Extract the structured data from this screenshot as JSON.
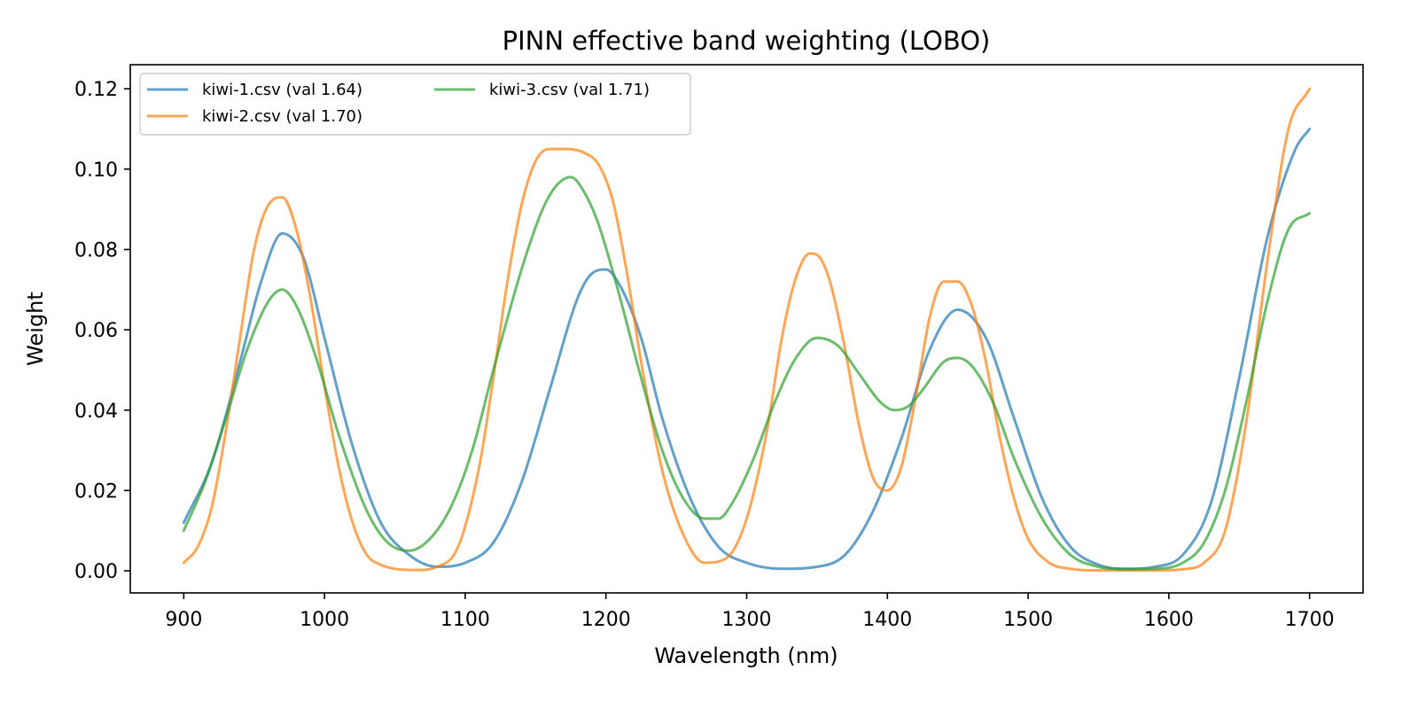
{
  "chart_data": {
    "type": "line",
    "title": "PINN effective band weighting (LOBO)",
    "xlabel": "Wavelength (nm)",
    "ylabel": "Weight",
    "xlim": [
      862,
      1738
    ],
    "ylim": [
      -0.0055,
      0.126
    ],
    "xticks": [
      900,
      1000,
      1100,
      1200,
      1300,
      1400,
      1500,
      1600,
      1700
    ],
    "yticks": [
      0.0,
      0.02,
      0.04,
      0.06,
      0.08,
      0.1,
      0.12
    ],
    "ytick_labels": [
      "0.00",
      "0.02",
      "0.04",
      "0.06",
      "0.08",
      "0.10",
      "0.12"
    ],
    "legend": {
      "position": "top-left",
      "columns": 2
    },
    "grid": false,
    "series": [
      {
        "name": "kiwi-1.csv (val 1.64)",
        "color": "#1f77b4",
        "x": [
          900,
          920,
          940,
          955,
          970,
          985,
          1000,
          1020,
          1040,
          1060,
          1080,
          1100,
          1120,
          1140,
          1160,
          1180,
          1190,
          1200,
          1210,
          1225,
          1240,
          1260,
          1280,
          1300,
          1325,
          1350,
          1370,
          1390,
          1410,
          1430,
          1450,
          1470,
          1490,
          1510,
          1530,
          1550,
          1570,
          1590,
          1610,
          1630,
          1650,
          1670,
          1690,
          1700
        ],
        "y": [
          0.012,
          0.027,
          0.052,
          0.072,
          0.084,
          0.078,
          0.058,
          0.031,
          0.012,
          0.004,
          0.001,
          0.002,
          0.007,
          0.022,
          0.045,
          0.068,
          0.074,
          0.075,
          0.071,
          0.058,
          0.038,
          0.018,
          0.006,
          0.002,
          0.0005,
          0.001,
          0.004,
          0.015,
          0.033,
          0.055,
          0.065,
          0.058,
          0.038,
          0.018,
          0.006,
          0.0015,
          0.0005,
          0.001,
          0.004,
          0.017,
          0.048,
          0.083,
          0.105,
          0.11
        ]
      },
      {
        "name": "kiwi-2.csv (val 1.70)",
        "color": "#ff7f0e",
        "x": [
          900,
          910,
          920,
          930,
          940,
          950,
          960,
          970,
          980,
          990,
          1000,
          1010,
          1020,
          1030,
          1040,
          1050,
          1065,
          1080,
          1095,
          1110,
          1120,
          1130,
          1140,
          1150,
          1160,
          1170,
          1185,
          1195,
          1205,
          1215,
          1225,
          1240,
          1255,
          1270,
          1285,
          1300,
          1315,
          1325,
          1335,
          1345,
          1352,
          1360,
          1370,
          1380,
          1390,
          1400,
          1410,
          1420,
          1430,
          1440,
          1450,
          1460,
          1470,
          1480,
          1490,
          1500,
          1515,
          1530,
          1550,
          1570,
          1590,
          1610,
          1625,
          1640,
          1655,
          1670,
          1685,
          1700
        ],
        "y": [
          0.002,
          0.006,
          0.016,
          0.035,
          0.058,
          0.08,
          0.091,
          0.093,
          0.085,
          0.068,
          0.046,
          0.026,
          0.012,
          0.004,
          0.0015,
          0.0005,
          0.0002,
          0.001,
          0.006,
          0.026,
          0.048,
          0.072,
          0.091,
          0.102,
          0.105,
          0.105,
          0.104,
          0.101,
          0.092,
          0.074,
          0.052,
          0.025,
          0.009,
          0.002,
          0.003,
          0.013,
          0.036,
          0.058,
          0.073,
          0.079,
          0.078,
          0.071,
          0.055,
          0.036,
          0.023,
          0.02,
          0.026,
          0.043,
          0.063,
          0.072,
          0.072,
          0.066,
          0.052,
          0.033,
          0.018,
          0.008,
          0.002,
          0.0005,
          0.0001,
          0.0001,
          0.0001,
          0.0004,
          0.002,
          0.01,
          0.037,
          0.077,
          0.11,
          0.12
        ]
      },
      {
        "name": "kiwi-3.csv (val 1.71)",
        "color": "#2ca02c",
        "x": [
          900,
          915,
          930,
          945,
          960,
          970,
          980,
          995,
          1010,
          1030,
          1045,
          1060,
          1075,
          1090,
          1105,
          1120,
          1140,
          1155,
          1165,
          1175,
          1185,
          1195,
          1210,
          1225,
          1240,
          1255,
          1270,
          1280,
          1290,
          1305,
          1320,
          1335,
          1350,
          1365,
          1380,
          1395,
          1405,
          1415,
          1425,
          1440,
          1450,
          1460,
          1475,
          1490,
          1510,
          1530,
          1550,
          1570,
          1590,
          1610,
          1625,
          1640,
          1655,
          1670,
          1685,
          1700
        ],
        "y": [
          0.01,
          0.022,
          0.038,
          0.055,
          0.067,
          0.07,
          0.066,
          0.052,
          0.034,
          0.015,
          0.007,
          0.005,
          0.008,
          0.016,
          0.03,
          0.05,
          0.075,
          0.09,
          0.096,
          0.098,
          0.094,
          0.086,
          0.068,
          0.048,
          0.03,
          0.018,
          0.013,
          0.013,
          0.017,
          0.028,
          0.042,
          0.053,
          0.058,
          0.056,
          0.049,
          0.042,
          0.04,
          0.041,
          0.045,
          0.052,
          0.053,
          0.051,
          0.042,
          0.028,
          0.013,
          0.004,
          0.001,
          0.0004,
          0.0005,
          0.002,
          0.007,
          0.02,
          0.042,
          0.067,
          0.085,
          0.089
        ]
      }
    ]
  }
}
